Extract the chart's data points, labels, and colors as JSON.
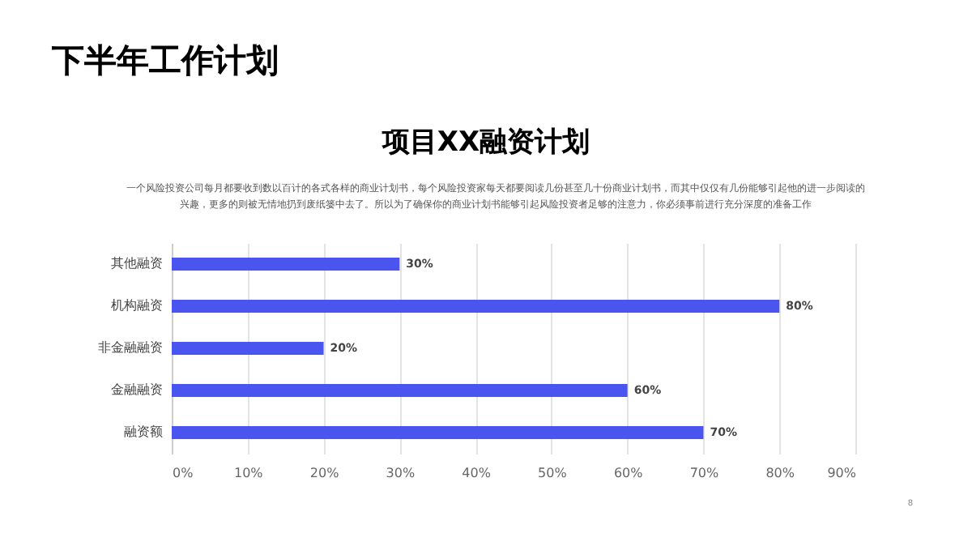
{
  "chart_data": {
    "type": "bar",
    "orientation": "horizontal",
    "title": "下半年工作计划",
    "subtitle": "项目XX融资计划",
    "annotations": [
      "一个风险投资公司每月都要收到数以百计的各式各样的商业计划书，每个风险投资家每天都要阅读几份甚至几十份商业计划书，而其中仅仅有几份能够引起他的进一步阅读的",
      "兴趣，更多的则被无情地扔到废纸篓中去了。所以为了确保你的商业计划书能够引起风险投资者足够的注意力，你必须事前进行充分深度的准备工作",
      "8"
    ],
    "categories": [
      "其他融资",
      "机构融资",
      "非金融融资",
      "金融融资",
      "融资额"
    ],
    "values": [
      30,
      80,
      20,
      60,
      70
    ],
    "value_labels": [
      "30%",
      "80%",
      "20%",
      "60%",
      "70%"
    ],
    "color": "#4a55f0",
    "xlim": [
      0,
      90
    ],
    "xticks": [
      {
        "value": 0,
        "label": "0%"
      },
      {
        "value": 10,
        "label": "10%"
      },
      {
        "value": 20,
        "label": "20%"
      },
      {
        "value": 30,
        "label": "30%"
      },
      {
        "value": 40,
        "label": "40%"
      },
      {
        "value": 50,
        "label": "50%"
      },
      {
        "value": 60,
        "label": "60%"
      },
      {
        "value": 70,
        "label": "70%"
      },
      {
        "value": 80,
        "label": "80%"
      },
      {
        "value": 90,
        "label": "90%"
      }
    ],
    "grid": "x"
  }
}
